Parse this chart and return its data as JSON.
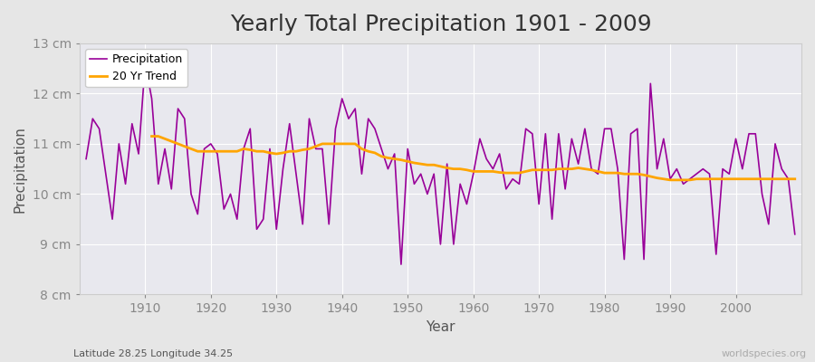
{
  "title": "Yearly Total Precipitation 1901 - 2009",
  "xlabel": "Year",
  "ylabel": "Precipitation",
  "subtitle": "Latitude 28.25 Longitude 34.25",
  "watermark": "worldspecies.org",
  "years": [
    1901,
    1902,
    1903,
    1904,
    1905,
    1906,
    1907,
    1908,
    1909,
    1910,
    1911,
    1912,
    1913,
    1914,
    1915,
    1916,
    1917,
    1918,
    1919,
    1920,
    1921,
    1922,
    1923,
    1924,
    1925,
    1926,
    1927,
    1928,
    1929,
    1930,
    1931,
    1932,
    1933,
    1934,
    1935,
    1936,
    1937,
    1938,
    1939,
    1940,
    1941,
    1942,
    1943,
    1944,
    1945,
    1946,
    1947,
    1948,
    1949,
    1950,
    1951,
    1952,
    1953,
    1954,
    1955,
    1956,
    1957,
    1958,
    1959,
    1960,
    1961,
    1962,
    1963,
    1964,
    1965,
    1966,
    1967,
    1968,
    1969,
    1970,
    1971,
    1972,
    1973,
    1974,
    1975,
    1976,
    1977,
    1978,
    1979,
    1980,
    1981,
    1982,
    1983,
    1984,
    1985,
    1986,
    1987,
    1988,
    1989,
    1990,
    1991,
    1992,
    1993,
    1994,
    1995,
    1996,
    1997,
    1998,
    1999,
    2000,
    2001,
    2002,
    2003,
    2004,
    2005,
    2006,
    2007,
    2008,
    2009
  ],
  "precip": [
    10.7,
    11.5,
    11.3,
    10.4,
    9.5,
    11.0,
    10.2,
    11.4,
    10.8,
    12.6,
    11.9,
    10.2,
    10.9,
    10.1,
    11.7,
    11.5,
    10.0,
    9.6,
    10.9,
    11.0,
    10.8,
    9.7,
    10.0,
    9.5,
    10.9,
    11.3,
    9.3,
    9.5,
    10.9,
    9.3,
    10.5,
    11.4,
    10.4,
    9.4,
    11.5,
    10.9,
    10.9,
    9.4,
    11.3,
    11.9,
    11.5,
    11.7,
    10.4,
    11.5,
    11.3,
    10.9,
    10.5,
    10.8,
    8.6,
    10.9,
    10.2,
    10.4,
    10.0,
    10.4,
    9.0,
    10.6,
    9.0,
    10.2,
    9.8,
    10.4,
    11.1,
    10.7,
    10.5,
    10.8,
    10.1,
    10.3,
    10.2,
    11.3,
    11.2,
    9.8,
    11.2,
    9.5,
    11.2,
    10.1,
    11.1,
    10.6,
    11.3,
    10.5,
    10.4,
    11.3,
    11.3,
    10.5,
    8.7,
    11.2,
    11.3,
    8.7,
    12.2,
    10.5,
    11.1,
    10.3,
    10.5,
    10.2,
    10.3,
    10.4,
    10.5,
    10.4,
    8.8,
    10.5,
    10.4,
    11.1,
    10.5,
    11.2,
    11.2,
    10.0,
    9.4,
    11.0,
    10.5,
    10.3,
    9.2
  ],
  "trend_years": [
    1911,
    1912,
    1913,
    1914,
    1915,
    1916,
    1917,
    1918,
    1919,
    1920,
    1921,
    1922,
    1923,
    1924,
    1925,
    1926,
    1927,
    1928,
    1929,
    1930,
    1931,
    1932,
    1933,
    1934,
    1935,
    1936,
    1937,
    1938,
    1939,
    1940,
    1941,
    1942,
    1943,
    1944,
    1945,
    1946,
    1947,
    1948,
    1949,
    1950,
    1951,
    1952,
    1953,
    1954,
    1955,
    1956,
    1957,
    1958,
    1959,
    1960,
    1961,
    1962,
    1963,
    1964,
    1965,
    1966,
    1967,
    1968,
    1969,
    1970,
    1971,
    1972,
    1973,
    1974,
    1975,
    1976,
    1977,
    1978,
    1979,
    1980,
    1981,
    1982,
    1983,
    1984,
    1985,
    1986,
    1987,
    1988,
    1989,
    1990,
    1991,
    1992,
    1993,
    1994,
    1995,
    1996,
    1997,
    1998,
    1999,
    2000,
    2001,
    2002,
    2003,
    2004,
    2005,
    2006,
    2007,
    2008,
    2009
  ],
  "trend": [
    11.15,
    11.15,
    11.1,
    11.05,
    11.0,
    10.95,
    10.9,
    10.85,
    10.85,
    10.85,
    10.85,
    10.85,
    10.85,
    10.85,
    10.9,
    10.88,
    10.85,
    10.85,
    10.82,
    10.8,
    10.82,
    10.85,
    10.85,
    10.88,
    10.9,
    10.95,
    11.0,
    11.0,
    11.0,
    11.0,
    11.0,
    11.0,
    10.9,
    10.85,
    10.82,
    10.75,
    10.72,
    10.7,
    10.68,
    10.65,
    10.62,
    10.6,
    10.58,
    10.58,
    10.55,
    10.52,
    10.5,
    10.5,
    10.48,
    10.45,
    10.45,
    10.45,
    10.45,
    10.43,
    10.42,
    10.42,
    10.42,
    10.45,
    10.48,
    10.48,
    10.48,
    10.48,
    10.5,
    10.5,
    10.5,
    10.52,
    10.5,
    10.48,
    10.45,
    10.42,
    10.42,
    10.42,
    10.4,
    10.4,
    10.4,
    10.38,
    10.35,
    10.32,
    10.3,
    10.28,
    10.28,
    10.28,
    10.28,
    10.3,
    10.3,
    10.3,
    10.3,
    10.3,
    10.3,
    10.3,
    10.3,
    10.3,
    10.3,
    10.3,
    10.3,
    10.3,
    10.3,
    10.3,
    10.3
  ],
  "precip_color": "#990099",
  "trend_color": "#FFA500",
  "bg_color": "#e6e6e6",
  "plot_bg_color": "#e8e8ee",
  "grid_color": "#ffffff",
  "ylim": [
    8.0,
    13.0
  ],
  "yticks": [
    8,
    9,
    10,
    11,
    12,
    13
  ],
  "ytick_labels": [
    "8 cm",
    "9 cm",
    "10 cm",
    "11 cm",
    "12 cm",
    "13 cm"
  ],
  "xlim": [
    1900,
    2010
  ],
  "xticks": [
    1910,
    1920,
    1930,
    1940,
    1950,
    1960,
    1970,
    1980,
    1990,
    2000
  ],
  "title_fontsize": 18,
  "label_fontsize": 11,
  "tick_fontsize": 10,
  "legend_labels": [
    "Precipitation",
    "20 Yr Trend"
  ]
}
